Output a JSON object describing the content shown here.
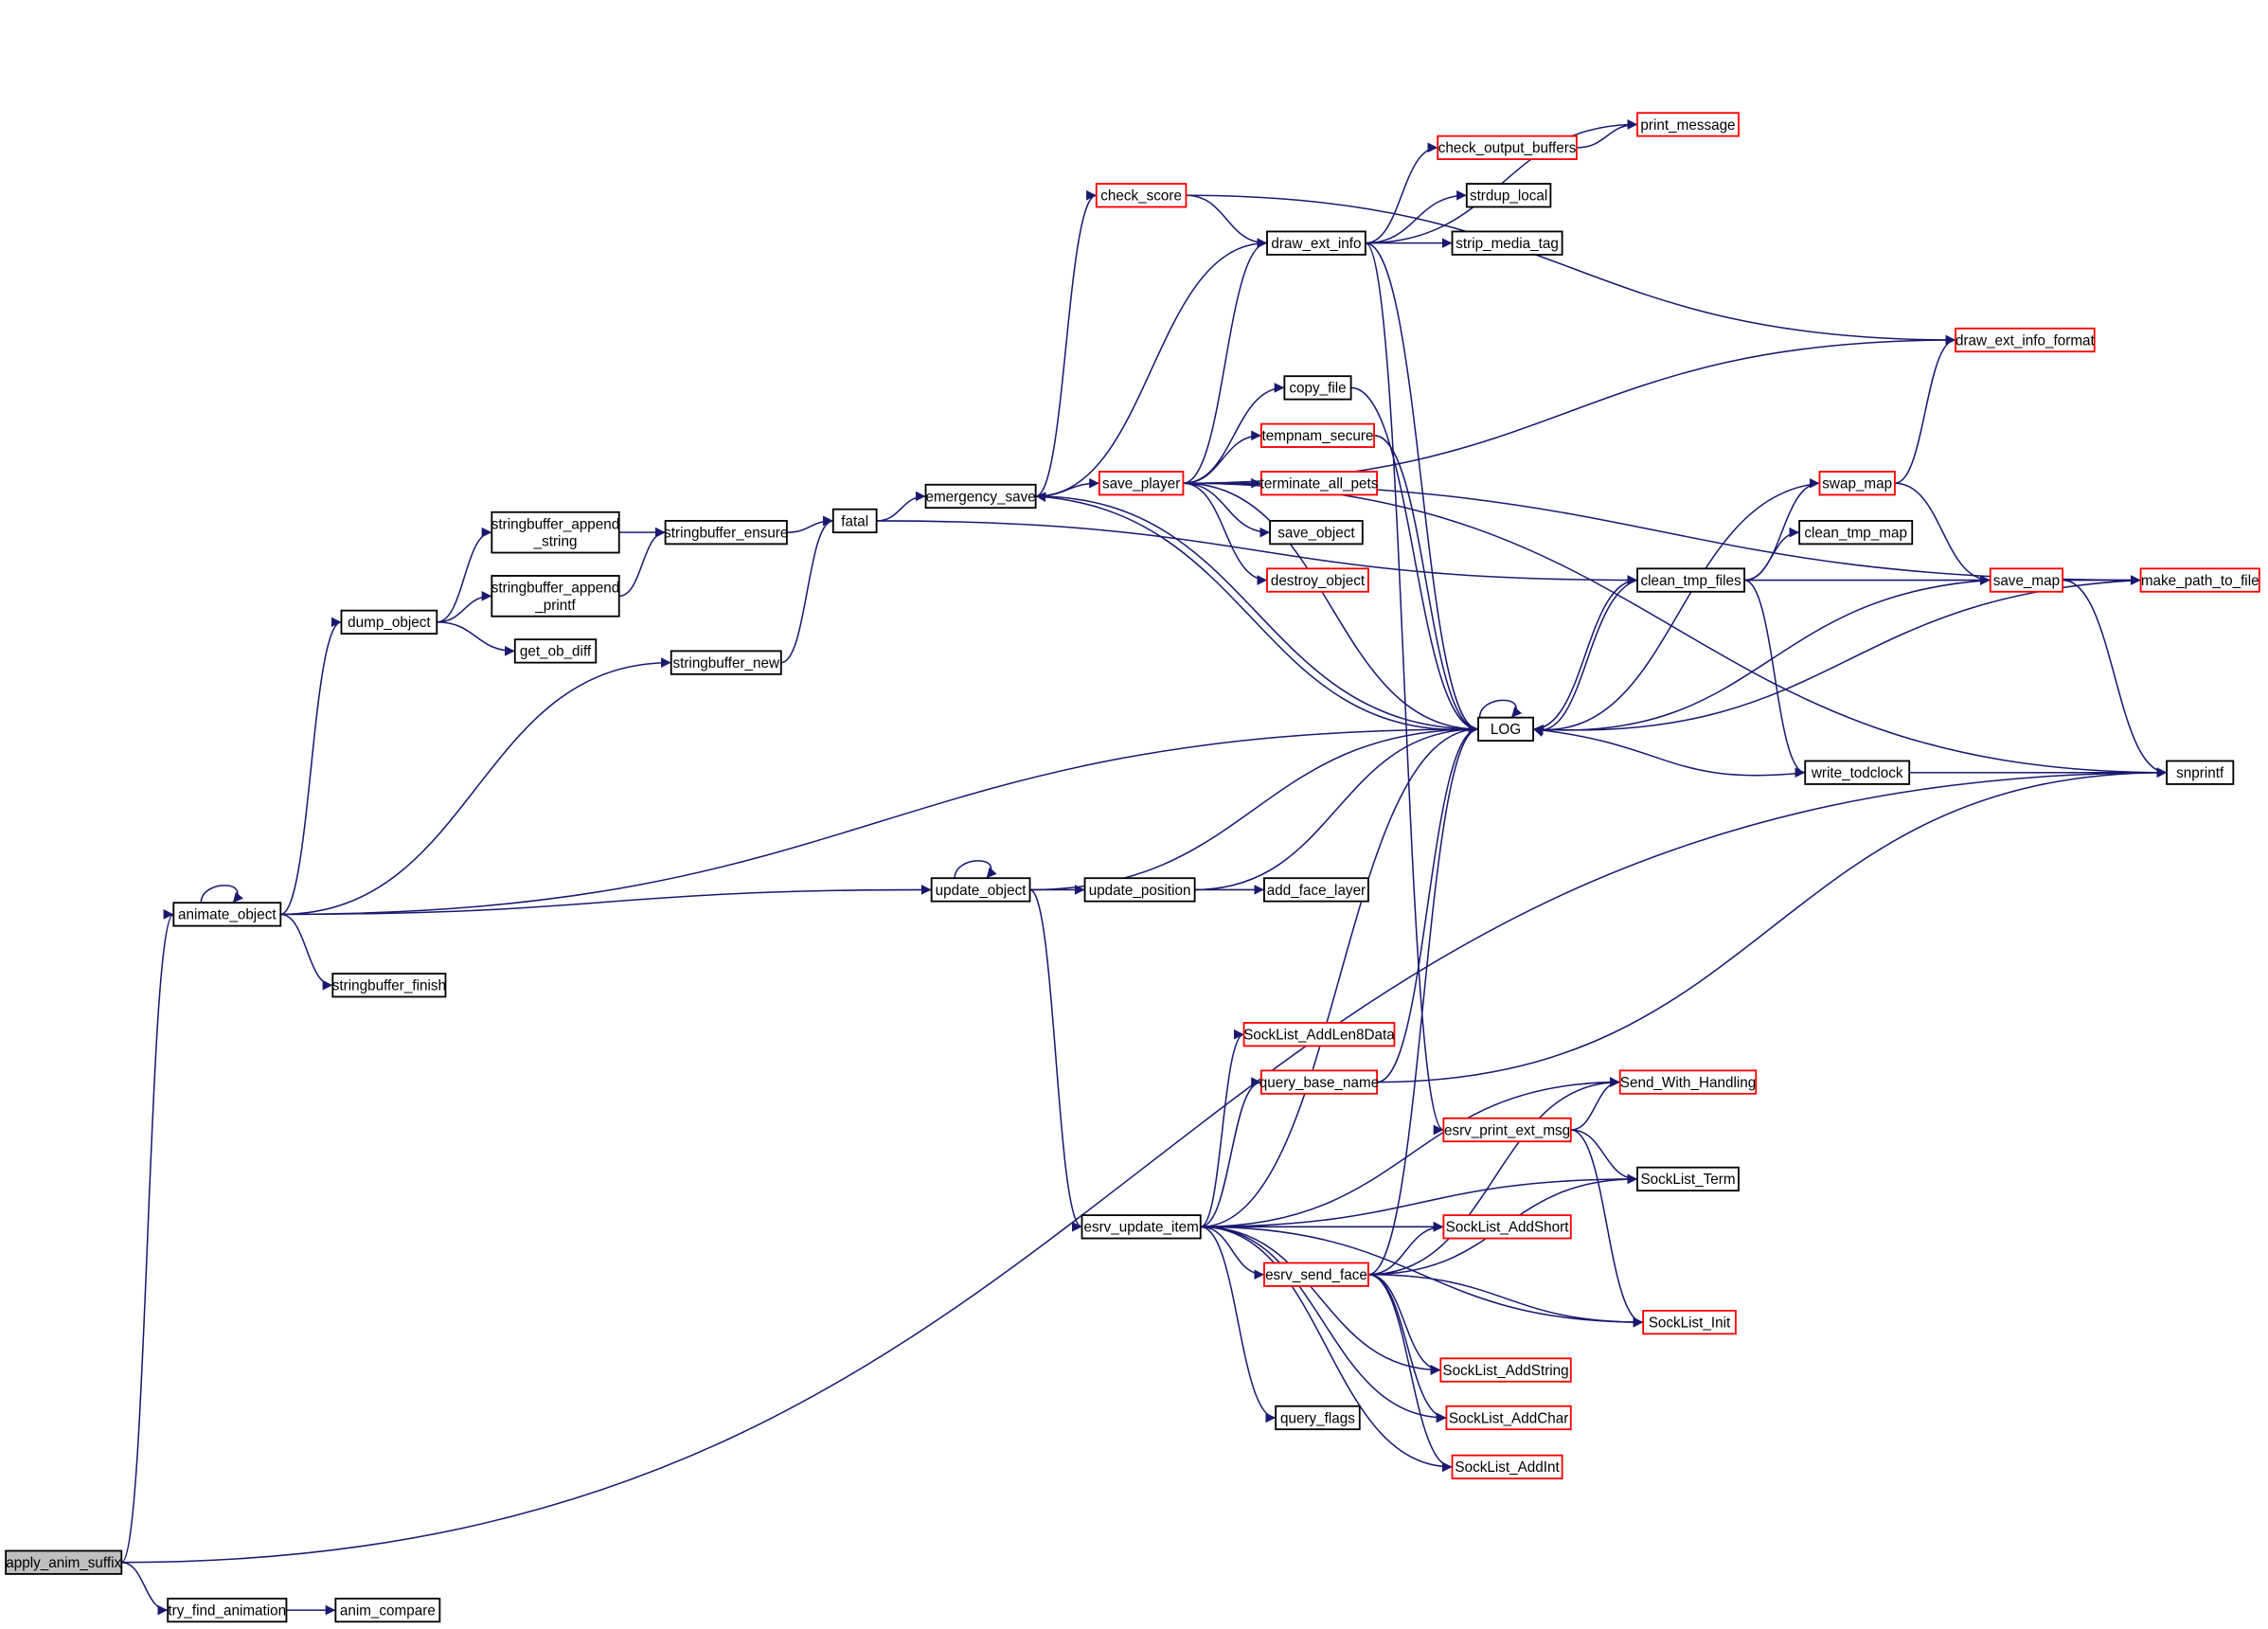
{
  "colors": {
    "edge": "#191970",
    "normal_border": "#000000",
    "linked_border": "#ff0000",
    "root_fill": "#bfbfbf",
    "node_fill": "#ffffff"
  },
  "nodes": [
    {
      "id": "apply_anim_suffix",
      "label": "apply_anim_suffix",
      "style": "root"
    },
    {
      "id": "try_find_animation",
      "label": "try_find_animation",
      "style": "normal"
    },
    {
      "id": "anim_compare",
      "label": "anim_compare",
      "style": "normal"
    },
    {
      "id": "animate_object",
      "label": "animate_object",
      "style": "normal"
    },
    {
      "id": "stringbuffer_finish",
      "label": "stringbuffer_finish",
      "style": "normal"
    },
    {
      "id": "dump_object",
      "label": "dump_object",
      "style": "normal"
    },
    {
      "id": "get_ob_diff",
      "label": "get_ob_diff",
      "style": "normal"
    },
    {
      "id": "stringbuffer_append_string",
      "label": "stringbuffer_append\n_string",
      "style": "normal"
    },
    {
      "id": "stringbuffer_append_printf",
      "label": "stringbuffer_append\n_printf",
      "style": "normal"
    },
    {
      "id": "stringbuffer_ensure",
      "label": "stringbuffer_ensure",
      "style": "normal"
    },
    {
      "id": "stringbuffer_new",
      "label": "stringbuffer_new",
      "style": "normal"
    },
    {
      "id": "fatal",
      "label": "fatal",
      "style": "normal"
    },
    {
      "id": "emergency_save",
      "label": "emergency_save",
      "style": "normal"
    },
    {
      "id": "check_score",
      "label": "check_score",
      "style": "linked"
    },
    {
      "id": "save_player",
      "label": "save_player",
      "style": "linked"
    },
    {
      "id": "draw_ext_info",
      "label": "draw_ext_info",
      "style": "normal"
    },
    {
      "id": "copy_file",
      "label": "copy_file",
      "style": "normal"
    },
    {
      "id": "tempnam_secure",
      "label": "tempnam_secure",
      "style": "linked"
    },
    {
      "id": "terminate_all_pets",
      "label": "terminate_all_pets",
      "style": "linked"
    },
    {
      "id": "save_object",
      "label": "save_object",
      "style": "normal"
    },
    {
      "id": "destroy_object",
      "label": "destroy_object",
      "style": "linked"
    },
    {
      "id": "check_output_buffers",
      "label": "check_output_buffers",
      "style": "linked"
    },
    {
      "id": "print_message",
      "label": "print_message",
      "style": "linked"
    },
    {
      "id": "strdup_local",
      "label": "strdup_local",
      "style": "normal"
    },
    {
      "id": "strip_media_tag",
      "label": "strip_media_tag",
      "style": "normal"
    },
    {
      "id": "draw_ext_info_format",
      "label": "draw_ext_info_format",
      "style": "linked"
    },
    {
      "id": "swap_map",
      "label": "swap_map",
      "style": "linked"
    },
    {
      "id": "clean_tmp_map",
      "label": "clean_tmp_map",
      "style": "normal"
    },
    {
      "id": "clean_tmp_files",
      "label": "clean_tmp_files",
      "style": "normal"
    },
    {
      "id": "save_map",
      "label": "save_map",
      "style": "linked"
    },
    {
      "id": "make_path_to_file",
      "label": "make_path_to_file",
      "style": "linked"
    },
    {
      "id": "LOG",
      "label": "LOG",
      "style": "normal"
    },
    {
      "id": "write_todclock",
      "label": "write_todclock",
      "style": "normal"
    },
    {
      "id": "snprintf",
      "label": "snprintf",
      "style": "normal"
    },
    {
      "id": "update_object",
      "label": "update_object",
      "style": "normal"
    },
    {
      "id": "update_position",
      "label": "update_position",
      "style": "normal"
    },
    {
      "id": "add_face_layer",
      "label": "add_face_layer",
      "style": "normal"
    },
    {
      "id": "SockList_AddLen8Data",
      "label": "SockList_AddLen8Data",
      "style": "linked"
    },
    {
      "id": "query_base_name",
      "label": "query_base_name",
      "style": "linked"
    },
    {
      "id": "Send_With_Handling",
      "label": "Send_With_Handling",
      "style": "linked"
    },
    {
      "id": "esrv_print_ext_msg",
      "label": "esrv_print_ext_msg",
      "style": "linked"
    },
    {
      "id": "SockList_Term",
      "label": "SockList_Term",
      "style": "normal"
    },
    {
      "id": "esrv_update_item",
      "label": "esrv_update_item",
      "style": "normal"
    },
    {
      "id": "SockList_AddShort",
      "label": "SockList_AddShort",
      "style": "linked"
    },
    {
      "id": "esrv_send_face",
      "label": "esrv_send_face",
      "style": "linked"
    },
    {
      "id": "SockList_Init",
      "label": "SockList_Init",
      "style": "linked"
    },
    {
      "id": "SockList_AddString",
      "label": "SockList_AddString",
      "style": "linked"
    },
    {
      "id": "query_flags",
      "label": "query_flags",
      "style": "normal"
    },
    {
      "id": "SockList_AddChar",
      "label": "SockList_AddChar",
      "style": "linked"
    },
    {
      "id": "SockList_AddInt",
      "label": "SockList_AddInt",
      "style": "linked"
    }
  ],
  "edges": [
    [
      "apply_anim_suffix",
      "animate_object"
    ],
    [
      "apply_anim_suffix",
      "try_find_animation"
    ],
    [
      "apply_anim_suffix",
      "snprintf"
    ],
    [
      "try_find_animation",
      "anim_compare"
    ],
    [
      "animate_object",
      "animate_object"
    ],
    [
      "animate_object",
      "dump_object"
    ],
    [
      "animate_object",
      "stringbuffer_new"
    ],
    [
      "animate_object",
      "stringbuffer_finish"
    ],
    [
      "animate_object",
      "update_object"
    ],
    [
      "animate_object",
      "LOG"
    ],
    [
      "dump_object",
      "stringbuffer_append_string"
    ],
    [
      "dump_object",
      "stringbuffer_append_printf"
    ],
    [
      "dump_object",
      "get_ob_diff"
    ],
    [
      "stringbuffer_append_string",
      "stringbuffer_ensure"
    ],
    [
      "stringbuffer_append_printf",
      "stringbuffer_ensure"
    ],
    [
      "stringbuffer_ensure",
      "fatal"
    ],
    [
      "stringbuffer_new",
      "fatal"
    ],
    [
      "fatal",
      "emergency_save"
    ],
    [
      "fatal",
      "clean_tmp_files"
    ],
    [
      "emergency_save",
      "check_score"
    ],
    [
      "emergency_save",
      "draw_ext_info"
    ],
    [
      "emergency_save",
      "save_player"
    ],
    [
      "emergency_save",
      "LOG"
    ],
    [
      "check_score",
      "draw_ext_info"
    ],
    [
      "check_score",
      "draw_ext_info_format"
    ],
    [
      "save_player",
      "draw_ext_info"
    ],
    [
      "save_player",
      "draw_ext_info_format"
    ],
    [
      "save_player",
      "copy_file"
    ],
    [
      "save_player",
      "tempnam_secure"
    ],
    [
      "save_player",
      "terminate_all_pets"
    ],
    [
      "save_player",
      "save_object"
    ],
    [
      "save_player",
      "destroy_object"
    ],
    [
      "save_player",
      "LOG"
    ],
    [
      "save_player",
      "snprintf"
    ],
    [
      "save_player",
      "make_path_to_file"
    ],
    [
      "draw_ext_info",
      "check_output_buffers"
    ],
    [
      "draw_ext_info",
      "print_message"
    ],
    [
      "draw_ext_info",
      "strdup_local"
    ],
    [
      "draw_ext_info",
      "strip_media_tag"
    ],
    [
      "draw_ext_info",
      "LOG"
    ],
    [
      "draw_ext_info",
      "esrv_print_ext_msg"
    ],
    [
      "check_output_buffers",
      "print_message"
    ],
    [
      "copy_file",
      "LOG"
    ],
    [
      "tempnam_secure",
      "LOG"
    ],
    [
      "LOG",
      "LOG"
    ],
    [
      "LOG",
      "clean_tmp_files"
    ],
    [
      "LOG",
      "emergency_save"
    ],
    [
      "clean_tmp_files",
      "swap_map"
    ],
    [
      "clean_tmp_files",
      "clean_tmp_map"
    ],
    [
      "clean_tmp_files",
      "save_map"
    ],
    [
      "clean_tmp_files",
      "write_todclock"
    ],
    [
      "clean_tmp_files",
      "LOG"
    ],
    [
      "swap_map",
      "draw_ext_info_format"
    ],
    [
      "swap_map",
      "save_map"
    ],
    [
      "swap_map",
      "LOG"
    ],
    [
      "save_map",
      "make_path_to_file"
    ],
    [
      "save_map",
      "snprintf"
    ],
    [
      "save_map",
      "LOG"
    ],
    [
      "make_path_to_file",
      "LOG"
    ],
    [
      "write_todclock",
      "LOG"
    ],
    [
      "write_todclock",
      "snprintf"
    ],
    [
      "update_object",
      "update_object"
    ],
    [
      "update_object",
      "update_position"
    ],
    [
      "update_object",
      "LOG"
    ],
    [
      "update_object",
      "esrv_update_item"
    ],
    [
      "update_position",
      "add_face_layer"
    ],
    [
      "update_position",
      "LOG"
    ],
    [
      "esrv_update_item",
      "SockList_AddLen8Data"
    ],
    [
      "esrv_update_item",
      "query_base_name"
    ],
    [
      "esrv_update_item",
      "Send_With_Handling"
    ],
    [
      "esrv_update_item",
      "SockList_Term"
    ],
    [
      "esrv_update_item",
      "SockList_AddShort"
    ],
    [
      "esrv_update_item",
      "esrv_send_face"
    ],
    [
      "esrv_update_item",
      "SockList_AddString"
    ],
    [
      "esrv_update_item",
      "SockList_AddChar"
    ],
    [
      "esrv_update_item",
      "query_flags"
    ],
    [
      "esrv_update_item",
      "SockList_AddInt"
    ],
    [
      "esrv_update_item",
      "SockList_Init"
    ],
    [
      "esrv_update_item",
      "LOG"
    ],
    [
      "query_base_name",
      "LOG"
    ],
    [
      "query_base_name",
      "snprintf"
    ],
    [
      "esrv_send_face",
      "LOG"
    ],
    [
      "esrv_send_face",
      "Send_With_Handling"
    ],
    [
      "esrv_send_face",
      "SockList_AddShort"
    ],
    [
      "esrv_send_face",
      "SockList_Term"
    ],
    [
      "esrv_send_face",
      "SockList_Init"
    ],
    [
      "esrv_send_face",
      "SockList_AddString"
    ],
    [
      "esrv_send_face",
      "SockList_AddChar"
    ],
    [
      "esrv_send_face",
      "SockList_AddInt"
    ],
    [
      "esrv_print_ext_msg",
      "Send_With_Handling"
    ],
    [
      "esrv_print_ext_msg",
      "SockList_Term"
    ],
    [
      "esrv_print_ext_msg",
      "SockList_Init"
    ]
  ]
}
